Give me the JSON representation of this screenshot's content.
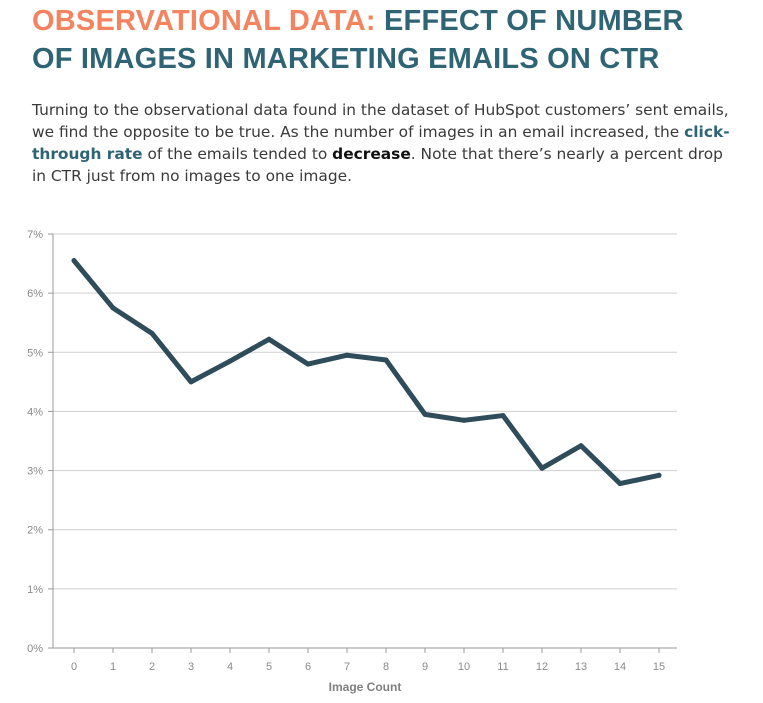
{
  "header": {
    "title_accent": "OBSERVATIONAL DATA:",
    "title_main": "EFFECT OF NUMBER OF IMAGES IN MARKETING EMAILS ON CTR"
  },
  "intro": {
    "part1": "Turning to the observational data found in the dataset of HubSpot customers’ sent emails, we find the opposite to be true. As the number of images in an email increased, the ",
    "highlight": "click-through rate",
    "part2": " of the emails tended to ",
    "emphasis": "decrease",
    "part3": ". Note that there’s nearly a percent drop in CTR just from no images to one image."
  },
  "colors": {
    "accent": "#f4845f",
    "brand": "#2e6474",
    "line": "#2e4c5a",
    "grid": "#cfcfcf"
  },
  "chart_data": {
    "type": "line",
    "title": "",
    "xlabel": "Image Count",
    "ylabel": "",
    "x": [
      0,
      1,
      2,
      3,
      4,
      5,
      6,
      7,
      8,
      9,
      10,
      11,
      12,
      13,
      14,
      15
    ],
    "series": [
      {
        "name": "",
        "values": [
          6.55,
          5.75,
          5.32,
          4.5,
          4.85,
          5.22,
          4.8,
          4.95,
          4.87,
          3.95,
          3.85,
          3.93,
          3.04,
          3.42,
          2.78,
          2.92
        ]
      }
    ],
    "ylim": [
      0,
      7
    ],
    "yticks": [
      0,
      1,
      2,
      3,
      4,
      5,
      6,
      7
    ],
    "ytick_labels": [
      "0%",
      "1%",
      "2%",
      "3%",
      "4%",
      "5%",
      "6%",
      "7%"
    ],
    "grid": "horizontal",
    "legend": "none"
  }
}
